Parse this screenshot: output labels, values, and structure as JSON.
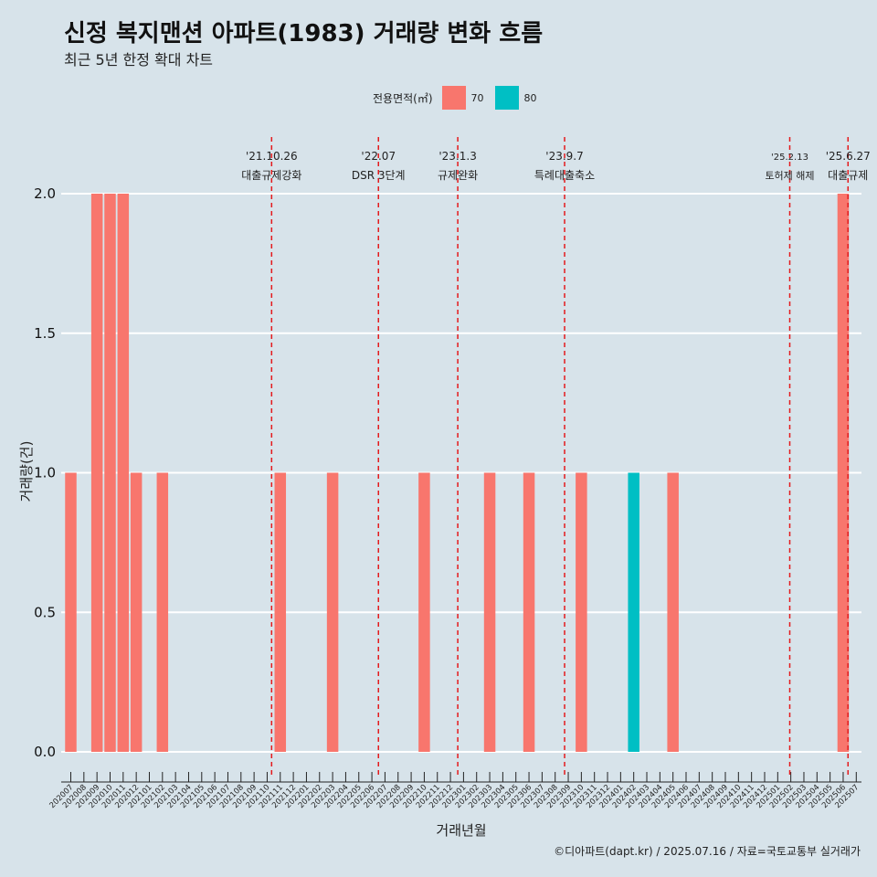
{
  "header": {
    "title": "신정 복지맨션 아파트(1983) 거래량 변화 흐름",
    "subtitle": "최근 5년 한정 확대 차트"
  },
  "legend": {
    "title": "전용면적(㎡)",
    "items": [
      {
        "label": "70",
        "color": "#F8766D"
      },
      {
        "label": "80",
        "color": "#00BFC4"
      }
    ]
  },
  "caption": "©디아파트(dapt.kr) / 2025.07.16 / 자료=국토교통부 실거래가",
  "chart_data": {
    "type": "bar",
    "xlabel": "거래년월",
    "ylabel": "거래량(건)",
    "ylim": [
      0,
      2.0
    ],
    "yticks": [
      "0.0",
      "0.5",
      "1.0",
      "1.5",
      "2.0"
    ],
    "grid": true,
    "legend_position": "top",
    "categories": [
      "202007",
      "202008",
      "202009",
      "202010",
      "202011",
      "202012",
      "202101",
      "202102",
      "202103",
      "202104",
      "202105",
      "202106",
      "202107",
      "202108",
      "202109",
      "202110",
      "202111",
      "202112",
      "202201",
      "202202",
      "202203",
      "202204",
      "202205",
      "202206",
      "202207",
      "202208",
      "202209",
      "202210",
      "202211",
      "202212",
      "202301",
      "202302",
      "202303",
      "202304",
      "202305",
      "202306",
      "202307",
      "202308",
      "202309",
      "202310",
      "202311",
      "202312",
      "202401",
      "202402",
      "202403",
      "202404",
      "202405",
      "202406",
      "202407",
      "202408",
      "202409",
      "202410",
      "202411",
      "202412",
      "202501",
      "202502",
      "202503",
      "202504",
      "202505",
      "202506",
      "202507"
    ],
    "series": [
      {
        "name": "70",
        "color": "#F8766D",
        "values": [
          1,
          0,
          2,
          2,
          2,
          1,
          0,
          1,
          0,
          0,
          0,
          0,
          0,
          0,
          0,
          0,
          1,
          0,
          0,
          0,
          1,
          0,
          0,
          0,
          0,
          0,
          0,
          1,
          0,
          0,
          0,
          0,
          1,
          0,
          0,
          1,
          0,
          0,
          0,
          1,
          0,
          0,
          0,
          0,
          0,
          0,
          1,
          0,
          0,
          0,
          0,
          0,
          0,
          0,
          0,
          0,
          0,
          0,
          0,
          2,
          0
        ]
      },
      {
        "name": "80",
        "color": "#00BFC4",
        "values": [
          0,
          0,
          0,
          0,
          0,
          0,
          0,
          0,
          0,
          0,
          0,
          0,
          0,
          0,
          0,
          0,
          0,
          0,
          0,
          0,
          0,
          0,
          0,
          0,
          0,
          0,
          0,
          0,
          0,
          0,
          0,
          0,
          0,
          0,
          0,
          0,
          0,
          0,
          0,
          0,
          0,
          0,
          0,
          1,
          0,
          0,
          0,
          0,
          0,
          0,
          0,
          0,
          0,
          0,
          0,
          0,
          0,
          0,
          0,
          0,
          0
        ]
      }
    ],
    "annotations": [
      {
        "date": "'21.10.26",
        "label": "대출규제강화",
        "x_month": "202110",
        "x_frac": 0.84
      },
      {
        "date": "'22.07",
        "label": "DSR 3단계",
        "x_month": "202207",
        "x_frac": 0.0
      },
      {
        "date": "'23.1.3",
        "label": "규제완화",
        "x_month": "202301",
        "x_frac": 0.06
      },
      {
        "date": "'23.9.7",
        "label": "특례대출축소",
        "x_month": "202309",
        "x_frac": 0.22
      },
      {
        "date": "'25.2.13",
        "label": "토허제 해제",
        "x_month": "202502",
        "x_frac": 0.42
      },
      {
        "date": "'25.6.27",
        "label": "대출규제",
        "x_month": "202506",
        "x_frac": 0.87
      }
    ],
    "line_color": "#E41A1C"
  }
}
